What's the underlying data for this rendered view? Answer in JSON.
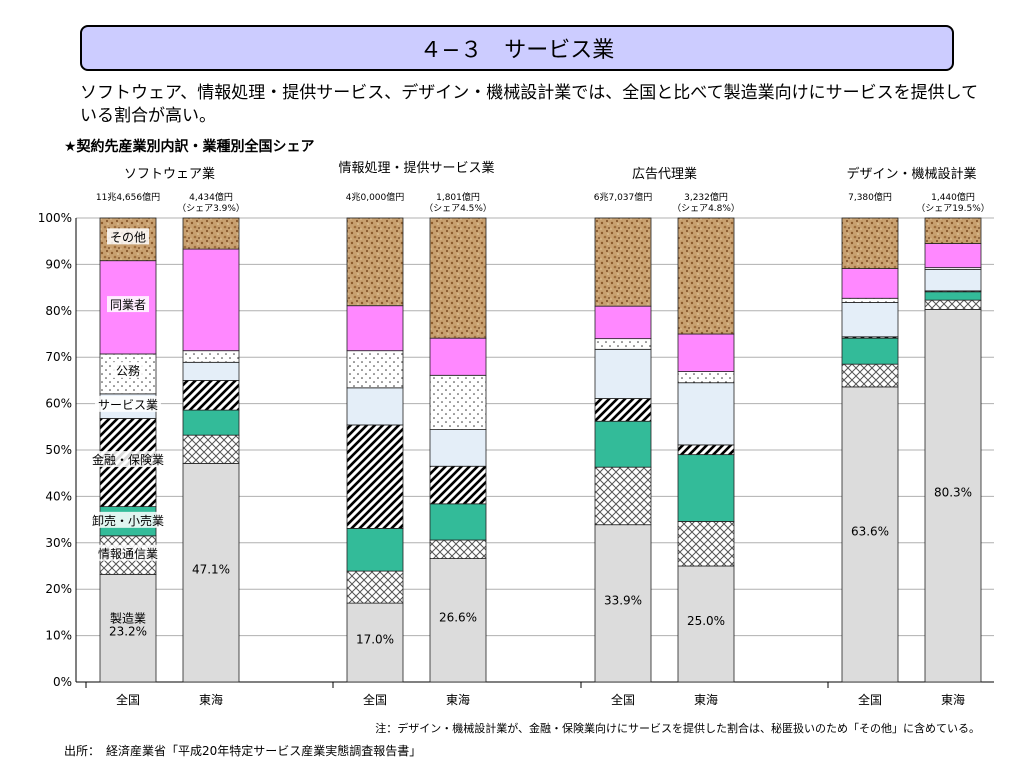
{
  "title": "４−３　サービス業",
  "summary": "ソフトウェア、情報処理・提供サービス、デザイン・機械設計業では、全国と比べて製造業向けにサービスを提供している割合が高い。",
  "chart_heading": "★契約先産業別内訳・業種別全国シェア",
  "note": "注：デザイン・機械設計業が、金融・保険業向けにサービスを提供した割合は、秘匿扱いのため「その他」に含めている。",
  "source": "出所：　経済産業省「平成20年特定サービス産業実態調査報告書」",
  "chart_data": {
    "type": "bar",
    "stacked": true,
    "percent_scale": true,
    "ylim": [
      0,
      100
    ],
    "y_ticks": [
      "0%",
      "10%",
      "20%",
      "30%",
      "40%",
      "50%",
      "60%",
      "70%",
      "80%",
      "90%",
      "100%"
    ],
    "grid": true,
    "segments": [
      {
        "name": "製造業",
        "color": "#dcdcdc",
        "pattern": "solid"
      },
      {
        "name": "情報通信業",
        "color": "#ffffff",
        "pattern": "crosshatch"
      },
      {
        "name": "卸売・小売業",
        "color": "#33bb99",
        "pattern": "solid"
      },
      {
        "name": "金融・保険業",
        "color": "#ffffff",
        "pattern": "diagonal"
      },
      {
        "name": "サービス業",
        "color": "#e4eef8",
        "pattern": "solid"
      },
      {
        "name": "公務",
        "color": "#ffffff",
        "pattern": "dots"
      },
      {
        "name": "同業者",
        "color": "#ff88ff",
        "pattern": "solid"
      },
      {
        "name": "その他",
        "color": "#c19a6b",
        "pattern": "speckle"
      }
    ],
    "groups": [
      {
        "name": "ソフトウェア業",
        "bars": [
          {
            "label": "全国",
            "amount": "11兆4,656億円",
            "share": "",
            "values": [
              23.2,
              8.3,
              6.3,
              19.0,
              5.3,
              8.6,
              20.1,
              9.2
            ],
            "value_label": "23.2%"
          },
          {
            "label": "東海",
            "amount": "4,434億円",
            "share": "（シェア3.9%）",
            "values": [
              47.1,
              6.1,
              5.4,
              6.4,
              3.9,
              2.5,
              21.9,
              6.7
            ],
            "value_label": "47.1%"
          }
        ]
      },
      {
        "name": "情報処理・提供サービス業",
        "bars": [
          {
            "label": "全国",
            "amount": "4兆0,000億円",
            "share": "",
            "values": [
              17.0,
              6.9,
              9.2,
              22.3,
              8.0,
              8.0,
              9.7,
              18.9
            ],
            "value_label": "17.0%"
          },
          {
            "label": "東海",
            "amount": "1,801億円",
            "share": "（シェア4.5%）",
            "values": [
              26.6,
              4.0,
              7.8,
              8.1,
              7.9,
              11.7,
              8.0,
              25.9
            ],
            "value_label": "26.6%"
          }
        ]
      },
      {
        "name": "広告代理業",
        "bars": [
          {
            "label": "全国",
            "amount": "6兆7,037億円",
            "share": "",
            "values": [
              33.9,
              12.4,
              9.9,
              4.9,
              10.6,
              2.3,
              7.0,
              19.0
            ],
            "value_label": "33.9%"
          },
          {
            "label": "東海",
            "amount": "3,232億円",
            "share": "（シェア4.8%）",
            "values": [
              25.0,
              9.6,
              14.4,
              2.1,
              13.4,
              2.4,
              8.1,
              25.0
            ],
            "value_label": "25.0%"
          }
        ]
      },
      {
        "name": "デザイン・機械設計業",
        "bars": [
          {
            "label": "全国",
            "amount": "7,380億円",
            "share": "",
            "values": [
              63.6,
              4.9,
              5.6,
              0.3,
              7.4,
              0.9,
              6.4,
              10.9
            ],
            "value_label": "63.6%"
          },
          {
            "label": "東海",
            "amount": "1,440億円",
            "share": "（シェア19.5%）",
            "values": [
              80.3,
              2.0,
              1.8,
              0.2,
              4.6,
              0.4,
              5.2,
              5.5
            ],
            "value_label": "80.3%"
          }
        ]
      }
    ],
    "segment_labels": [
      {
        "text": "その他",
        "bar": 0
      },
      {
        "text": "同業者",
        "bar": 0
      },
      {
        "text": "公務",
        "bar": 0
      },
      {
        "text": "サービス業",
        "bar": 0
      },
      {
        "text": "金融・保険業",
        "bar": 0
      },
      {
        "text": "卸売・小売業",
        "bar": 0
      },
      {
        "text": "情報通信業",
        "bar": 0
      },
      {
        "text": "製造業",
        "bar": 0
      }
    ]
  }
}
